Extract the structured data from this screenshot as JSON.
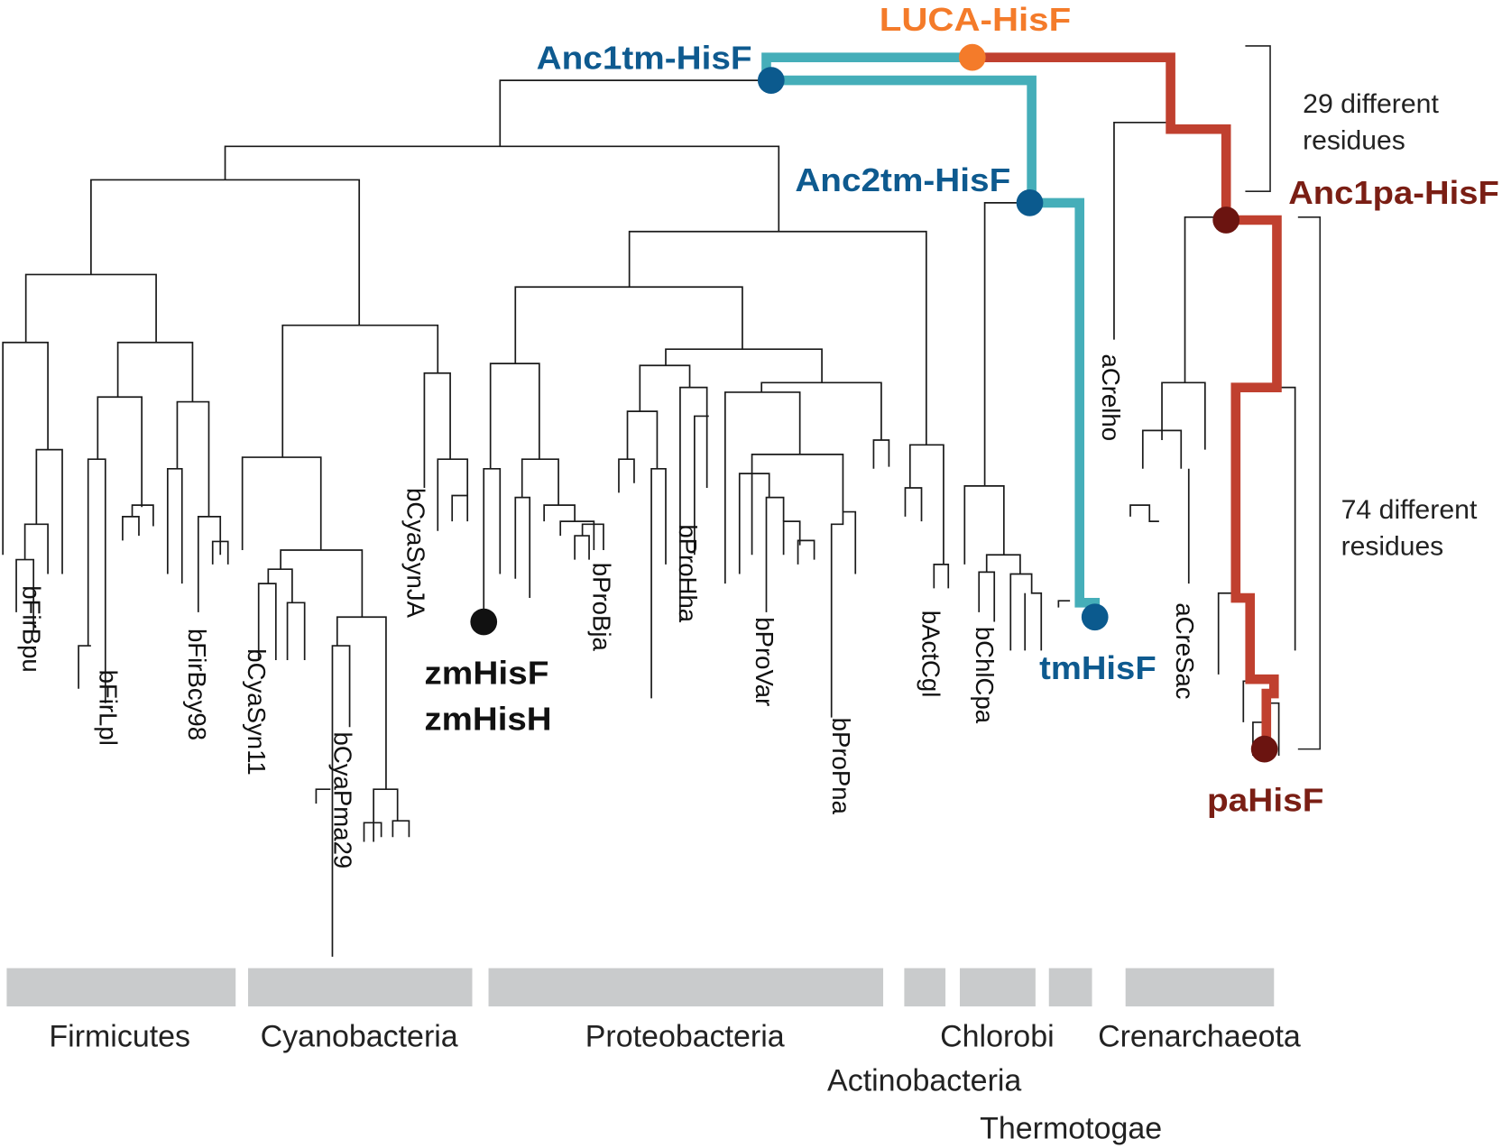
{
  "colors": {
    "teal_path": "#45AEB9",
    "red_path": "#C0402F",
    "luca": "#F47B2A",
    "tm_blue": "#0E5A8F",
    "pa_darkred": "#6E1A12",
    "category_bar": "#C9CBCC"
  },
  "nodes": {
    "luca": "LUCA-HisF",
    "anc1tm": "Anc1tm-HisF",
    "anc2tm": "Anc2tm-HisF",
    "anc1pa": "Anc1pa-HisF",
    "tm": "tmHisF",
    "pa": "paHisF",
    "zm1": "zmHisF",
    "zm2": "zmHisH"
  },
  "annotations": {
    "diff29_line1": "29 different",
    "diff29_line2": "residues",
    "diff74_line1": "74 different",
    "diff74_line2": "residues"
  },
  "leaves": [
    "bFirBpu",
    "bFirLpl",
    "bFirBcy98",
    "bCyaSyn11",
    "bCyaPma29",
    "bCyaSynJA",
    "bProBja",
    "bProHha",
    "bProVar",
    "bProPna",
    "bActCgl",
    "bChlCpa",
    "aCrelho",
    "aCreSac"
  ],
  "categories": [
    "Firmicutes",
    "Cyanobacteria",
    "Proteobacteria",
    "Actinobacteria",
    "Chlorobi",
    "Thermotogae",
    "Crenarchaeota"
  ]
}
